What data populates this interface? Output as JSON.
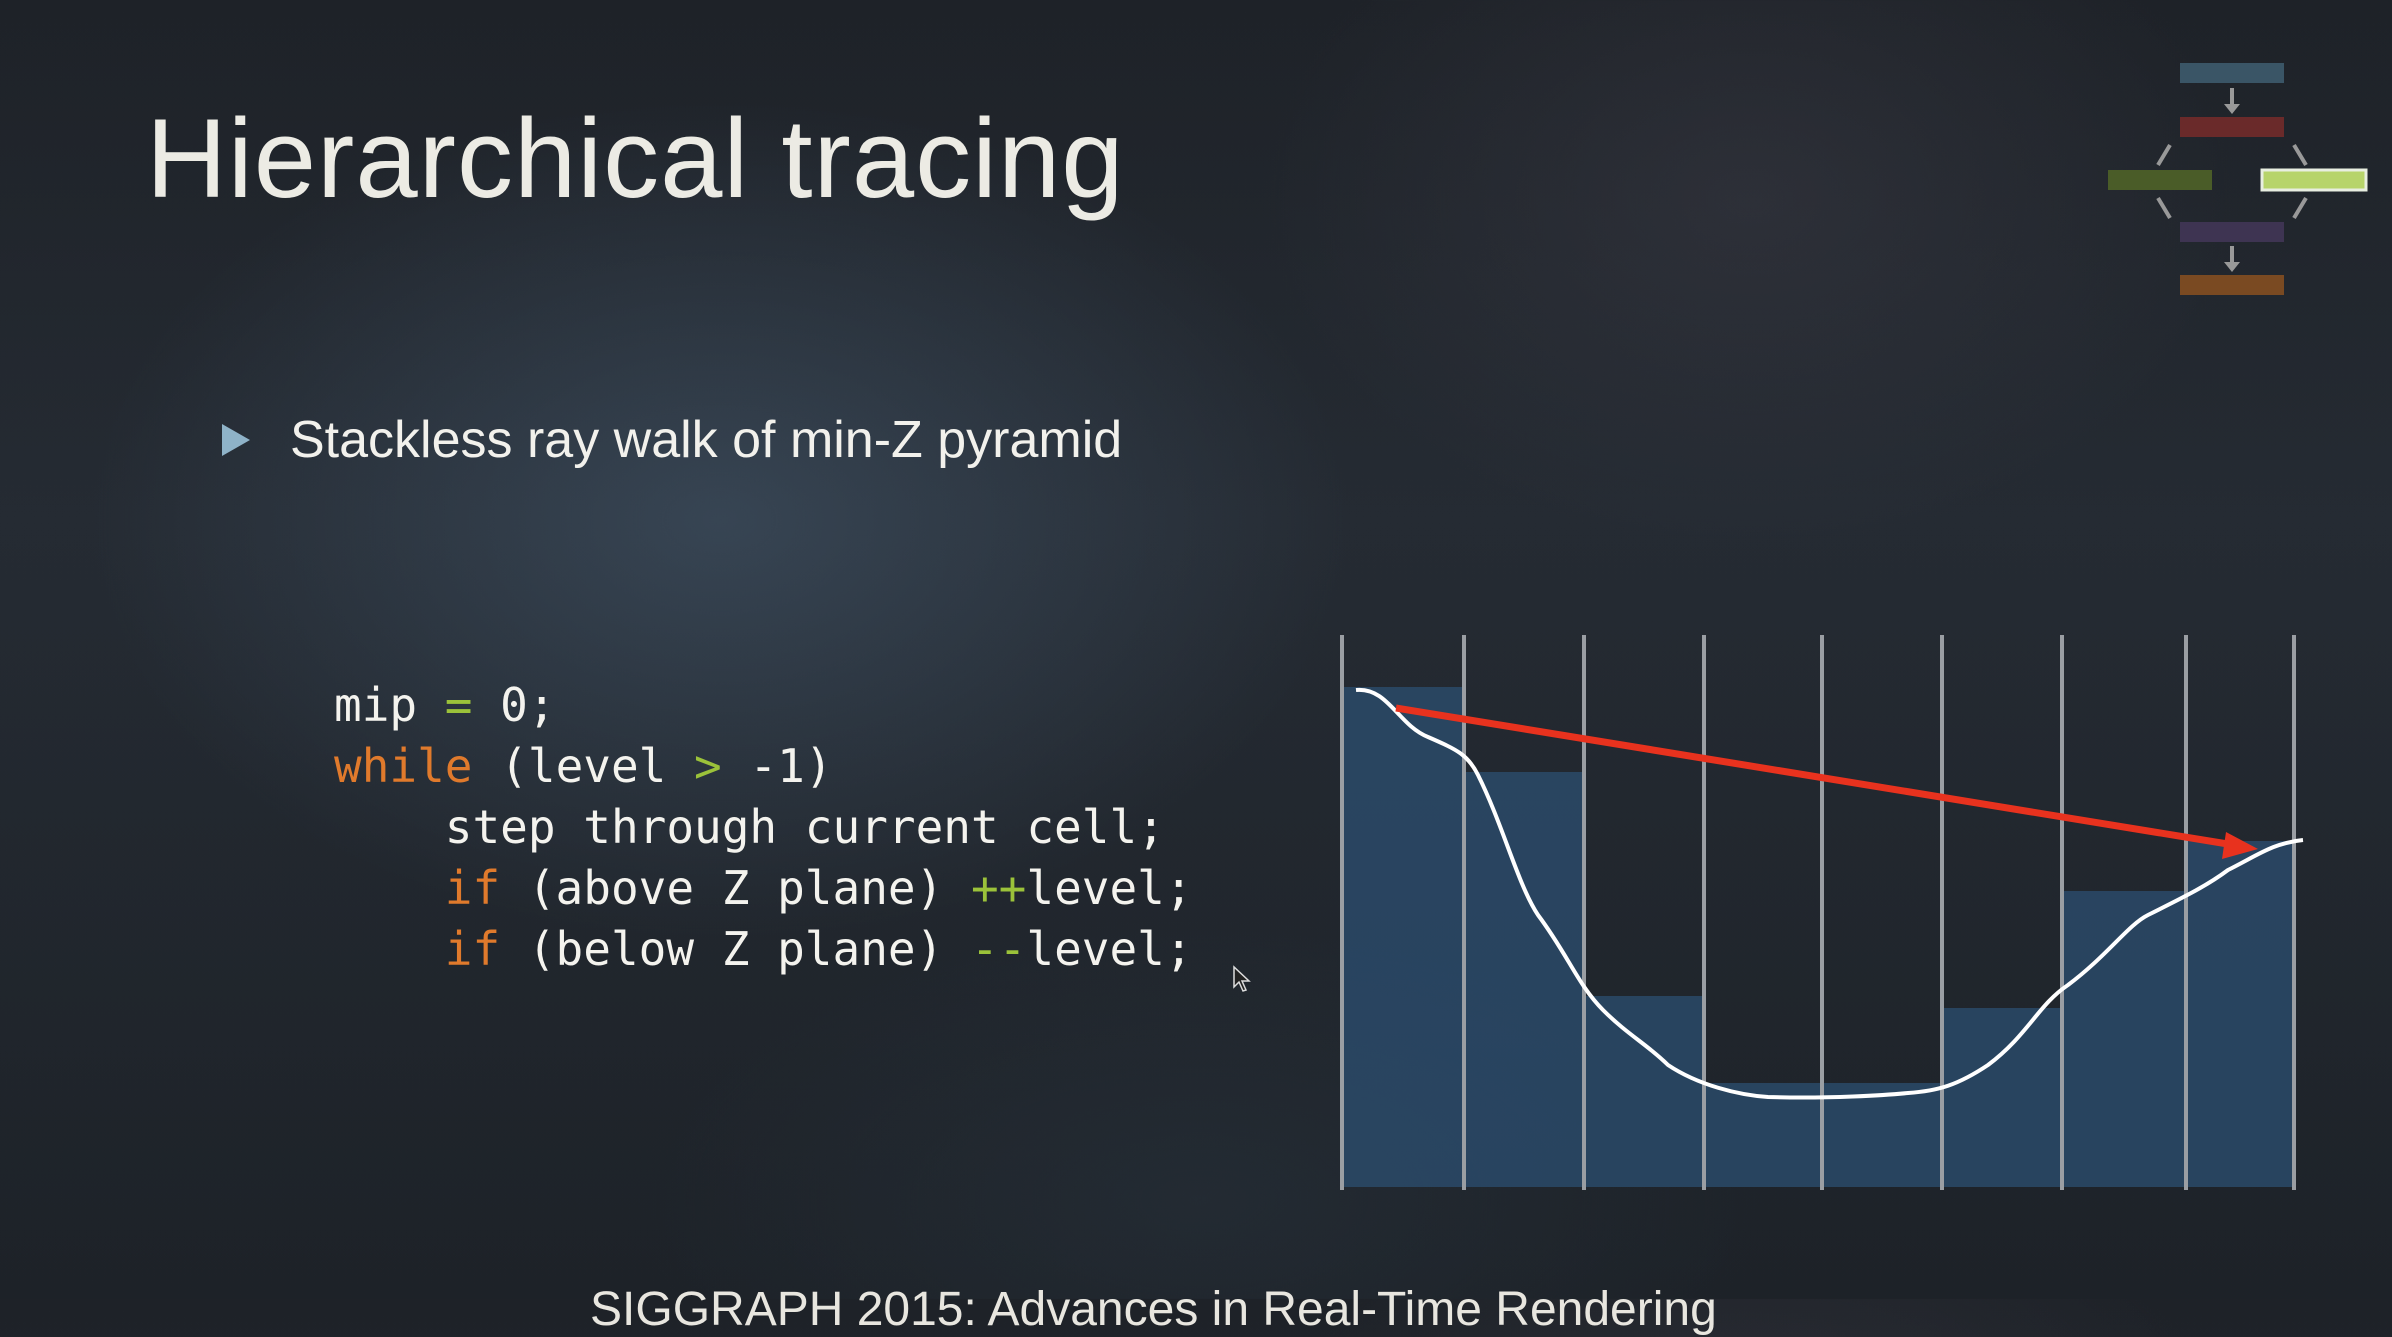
{
  "slide": {
    "title": "Hierarchical tracing",
    "bullet": "Stackless ray walk of min-Z pyramid",
    "footer": "SIGGRAPH 2015: Advances in Real-Time Rendering"
  },
  "code": {
    "lines": [
      {
        "indent": "",
        "parts": [
          {
            "t": "mip "
          },
          {
            "t": "=",
            "c": "op"
          },
          {
            "t": " 0;"
          }
        ]
      },
      {
        "indent": "",
        "parts": [
          {
            "t": "while",
            "c": "kw"
          },
          {
            "t": " (level "
          },
          {
            "t": ">",
            "c": "op"
          },
          {
            "t": " -1)"
          }
        ]
      },
      {
        "indent": "    ",
        "parts": [
          {
            "t": "step through current cell;"
          }
        ]
      },
      {
        "indent": "    ",
        "parts": [
          {
            "t": "if",
            "c": "kw"
          },
          {
            "t": " (above Z plane) "
          },
          {
            "t": "++",
            "c": "op"
          },
          {
            "t": "level;"
          }
        ]
      },
      {
        "indent": "    ",
        "parts": [
          {
            "t": "if",
            "c": "kw"
          },
          {
            "t": " (below Z plane) "
          },
          {
            "t": "--",
            "c": "op"
          },
          {
            "t": "level;"
          }
        ]
      }
    ]
  },
  "colors": {
    "keyword": "#e07a2c",
    "operator": "#9bc23a",
    "ray": "#e8321e",
    "fill": "#2b4b6a",
    "grid": "#9a9ea3",
    "curve": "#ffffff"
  },
  "icons": {
    "bullet": "triangle-right-icon",
    "cursor": "mouse-cursor-icon",
    "pipeline": "pipeline-flow-icon"
  }
}
